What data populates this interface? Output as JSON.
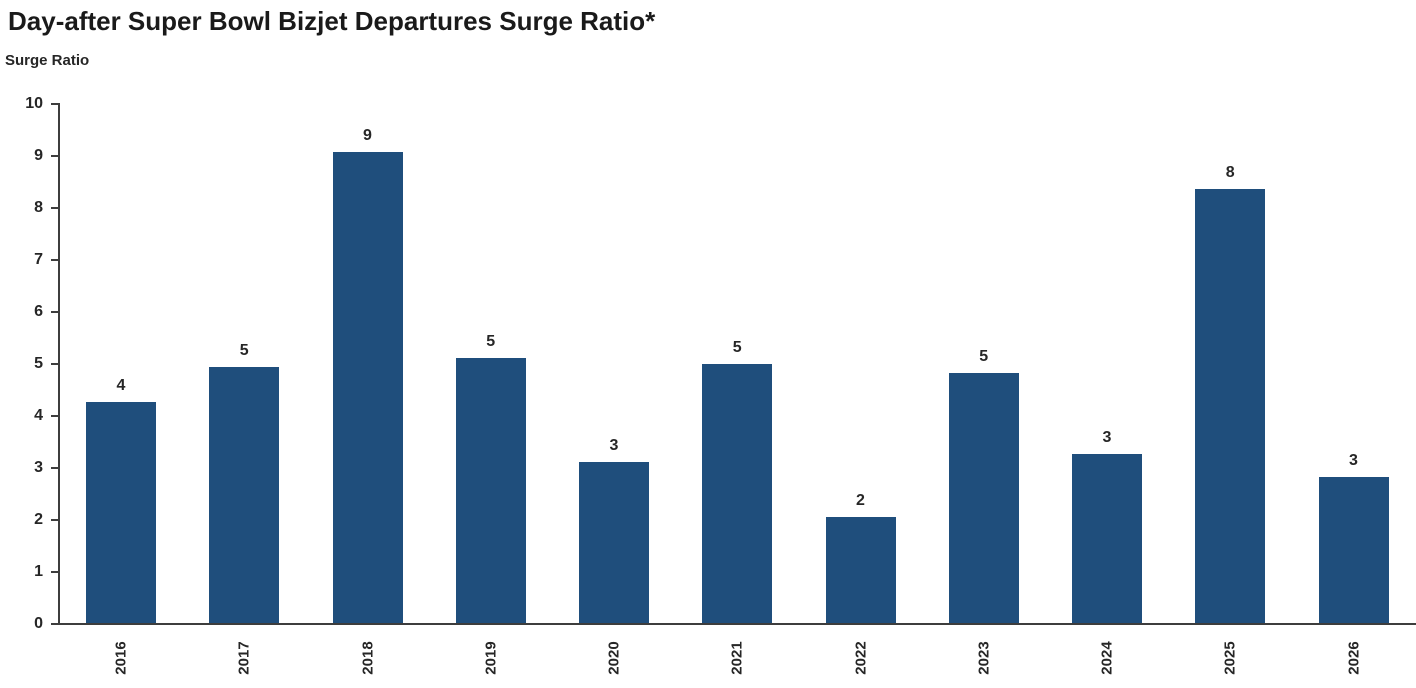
{
  "header": {
    "title": "Day-after Super Bowl Bizjet Departures Surge Ratio*"
  },
  "chart_data": {
    "type": "bar",
    "title": "Day-after Super Bowl Bizjet Departures Surge Ratio*",
    "ylabel": "Surge Ratio",
    "xlabel": "",
    "categories": [
      "2016",
      "2017",
      "2018",
      "2019",
      "2020",
      "2021",
      "2022",
      "2023",
      "2024",
      "2025",
      "2026"
    ],
    "values": [
      4.25,
      4.92,
      9.06,
      5.1,
      3.1,
      4.98,
      2.04,
      4.81,
      3.25,
      8.35,
      2.81
    ],
    "bar_labels": [
      "4",
      "5",
      "9",
      "5",
      "3",
      "5",
      "2",
      "5",
      "3",
      "8",
      "3"
    ],
    "ylim": [
      0,
      10
    ],
    "y_ticks": [
      10,
      9,
      8,
      7,
      6,
      5,
      4,
      3,
      2,
      1,
      0
    ],
    "grid": false,
    "legend": "none",
    "bar_color": "#1f4e7c",
    "axis_color": "#3d3d3d",
    "label_color": "#262626"
  }
}
